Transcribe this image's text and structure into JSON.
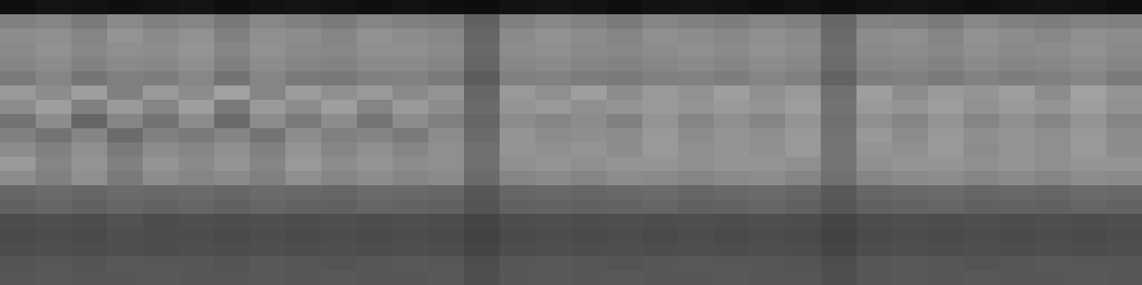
{
  "chart_data": {
    "type": "heatmap",
    "tick_labels": false,
    "zlim": [
      0,
      100
    ],
    "cells": [
      [
        6,
        8,
        7,
        6,
        7,
        8,
        6,
        7,
        8,
        7,
        6,
        7,
        6,
        5,
        7,
        8,
        7,
        6,
        7,
        8,
        7,
        6,
        7,
        6,
        7,
        8,
        7,
        6,
        7,
        8,
        7,
        6
      ],
      [
        50,
        52,
        48,
        54,
        50,
        52,
        47,
        53,
        50,
        48,
        52,
        50,
        49,
        38,
        50,
        53,
        51,
        48,
        52,
        50,
        49,
        52,
        50,
        40,
        51,
        50,
        48,
        53,
        50,
        49,
        51,
        50
      ],
      [
        55,
        56,
        52,
        58,
        54,
        57,
        50,
        56,
        55,
        52,
        57,
        55,
        53,
        40,
        54,
        57,
        55,
        52,
        56,
        55,
        53,
        56,
        54,
        42,
        55,
        56,
        52,
        57,
        55,
        53,
        56,
        55
      ],
      [
        54,
        57,
        53,
        56,
        55,
        58,
        52,
        57,
        54,
        53,
        56,
        56,
        54,
        41,
        55,
        56,
        54,
        53,
        55,
        56,
        54,
        57,
        55,
        43,
        54,
        55,
        53,
        56,
        54,
        55,
        57,
        54
      ],
      [
        52,
        55,
        51,
        54,
        53,
        56,
        50,
        55,
        52,
        51,
        54,
        54,
        52,
        40,
        53,
        54,
        52,
        51,
        53,
        54,
        52,
        55,
        53,
        42,
        52,
        53,
        51,
        54,
        52,
        53,
        55,
        52
      ],
      [
        48,
        52,
        46,
        50,
        49,
        53,
        45,
        52,
        48,
        47,
        50,
        51,
        48,
        36,
        50,
        51,
        49,
        48,
        50,
        51,
        49,
        52,
        50,
        39,
        49,
        50,
        48,
        51,
        49,
        50,
        52,
        48
      ],
      [
        60,
        55,
        62,
        50,
        60,
        55,
        63,
        52,
        61,
        56,
        60,
        54,
        58,
        40,
        60,
        56,
        62,
        55,
        60,
        57,
        62,
        56,
        60,
        44,
        62,
        55,
        60,
        58,
        62,
        55,
        63,
        58
      ],
      [
        55,
        62,
        50,
        60,
        52,
        62,
        48,
        60,
        55,
        62,
        52,
        60,
        55,
        42,
        58,
        60,
        56,
        58,
        60,
        58,
        60,
        58,
        62,
        45,
        60,
        58,
        62,
        57,
        60,
        58,
        62,
        57
      ],
      [
        45,
        55,
        40,
        52,
        45,
        55,
        42,
        55,
        48,
        55,
        46,
        55,
        50,
        40,
        55,
        52,
        55,
        50,
        58,
        52,
        56,
        52,
        58,
        44,
        56,
        52,
        58,
        52,
        56,
        52,
        58,
        52
      ],
      [
        50,
        45,
        52,
        42,
        50,
        48,
        52,
        45,
        55,
        50,
        52,
        48,
        55,
        42,
        58,
        55,
        56,
        55,
        60,
        55,
        58,
        56,
        60,
        45,
        60,
        55,
        60,
        56,
        58,
        56,
        60,
        55
      ],
      [
        55,
        50,
        56,
        48,
        55,
        52,
        56,
        50,
        58,
        52,
        56,
        52,
        56,
        44,
        58,
        56,
        58,
        55,
        60,
        56,
        58,
        56,
        60,
        46,
        58,
        56,
        60,
        55,
        58,
        56,
        60,
        55
      ],
      [
        60,
        52,
        58,
        50,
        58,
        54,
        58,
        52,
        60,
        55,
        58,
        55,
        56,
        44,
        56,
        58,
        56,
        58,
        58,
        56,
        58,
        58,
        56,
        46,
        56,
        58,
        58,
        56,
        58,
        56,
        58,
        58
      ],
      [
        55,
        50,
        56,
        48,
        55,
        52,
        54,
        50,
        56,
        52,
        55,
        52,
        54,
        42,
        52,
        54,
        52,
        55,
        54,
        52,
        54,
        55,
        52,
        44,
        52,
        54,
        55,
        52,
        54,
        52,
        55,
        54
      ],
      [
        40,
        42,
        40,
        42,
        41,
        42,
        40,
        42,
        41,
        40,
        42,
        41,
        40,
        34,
        40,
        41,
        40,
        41,
        42,
        40,
        41,
        42,
        40,
        35,
        40,
        41,
        42,
        40,
        41,
        40,
        42,
        41
      ],
      [
        38,
        40,
        38,
        40,
        39,
        40,
        38,
        40,
        39,
        38,
        40,
        39,
        38,
        33,
        38,
        39,
        38,
        39,
        40,
        38,
        39,
        40,
        38,
        34,
        38,
        39,
        40,
        38,
        39,
        38,
        40,
        39
      ],
      [
        30,
        31,
        30,
        32,
        30,
        31,
        30,
        31,
        30,
        31,
        30,
        31,
        30,
        27,
        30,
        31,
        30,
        31,
        30,
        31,
        30,
        31,
        30,
        27,
        30,
        31,
        30,
        31,
        30,
        31,
        30,
        31
      ],
      [
        29,
        30,
        29,
        31,
        30,
        30,
        29,
        30,
        29,
        30,
        29,
        30,
        29,
        26,
        29,
        30,
        29,
        30,
        29,
        30,
        29,
        30,
        29,
        26,
        29,
        30,
        29,
        30,
        29,
        30,
        29,
        30
      ],
      [
        30,
        31,
        30,
        31,
        30,
        31,
        30,
        31,
        30,
        31,
        30,
        31,
        30,
        27,
        30,
        31,
        30,
        31,
        30,
        31,
        30,
        31,
        30,
        27,
        30,
        31,
        30,
        31,
        30,
        31,
        30,
        31
      ],
      [
        33,
        34,
        33,
        35,
        34,
        34,
        33,
        35,
        34,
        33,
        34,
        35,
        34,
        30,
        34,
        35,
        34,
        33,
        34,
        35,
        34,
        34,
        33,
        30,
        34,
        35,
        34,
        33,
        34,
        35,
        34,
        34
      ],
      [
        34,
        35,
        34,
        34,
        35,
        34,
        34,
        35,
        34,
        35,
        34,
        34,
        35,
        31,
        34,
        35,
        34,
        35,
        34,
        34,
        35,
        34,
        34,
        31,
        34,
        35,
        34,
        35,
        34,
        34,
        35,
        34
      ]
    ]
  }
}
